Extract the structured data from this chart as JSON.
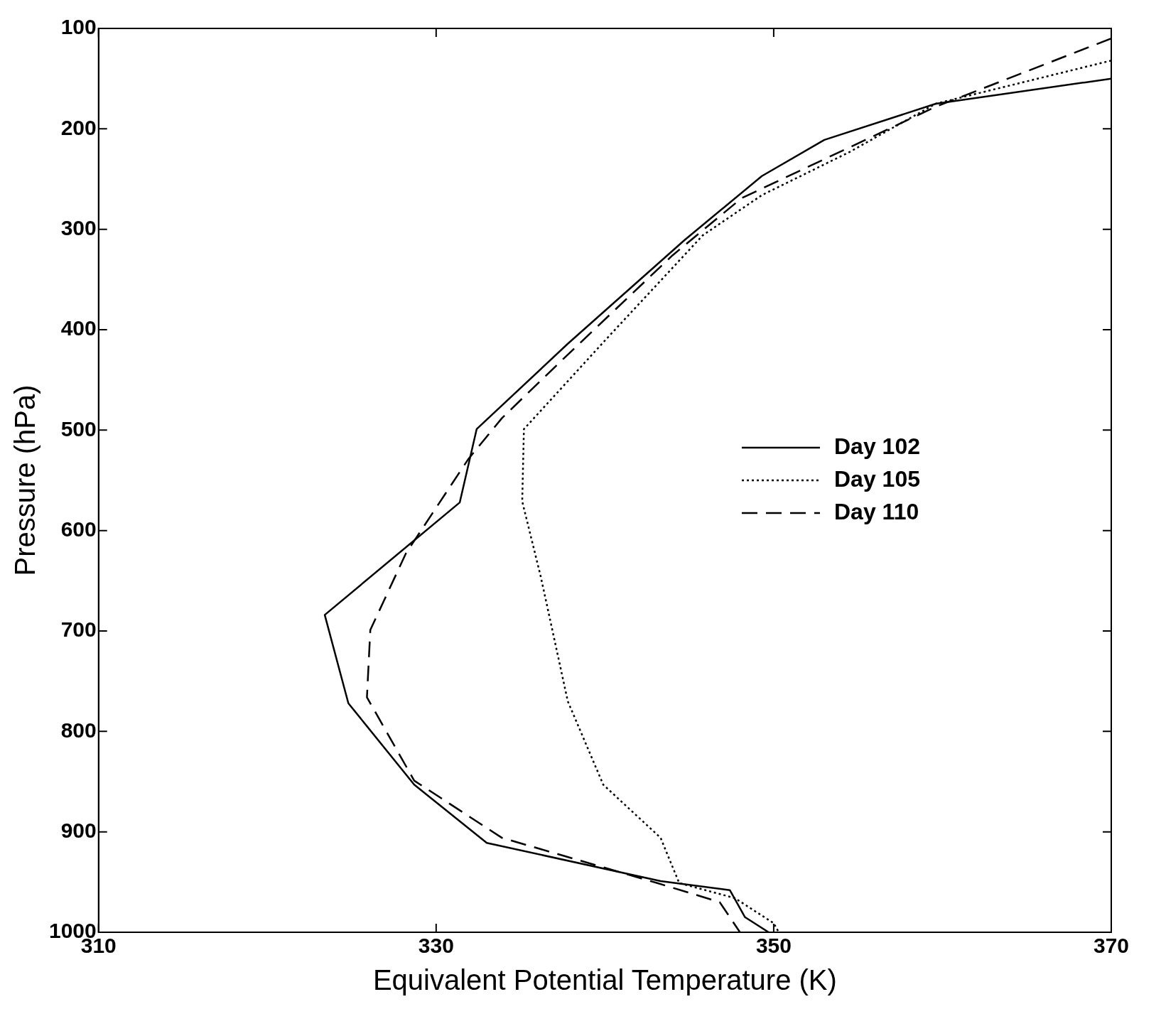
{
  "chart_data": {
    "type": "line",
    "xlabel": "Equivalent Potential Temperature (K)",
    "ylabel": "Pressure (hPa)",
    "xlim": [
      310,
      370
    ],
    "xticks": [
      310,
      330,
      350,
      370
    ],
    "ylim": [
      1000,
      100
    ],
    "yticks": [
      100,
      200,
      300,
      400,
      500,
      600,
      700,
      800,
      900,
      1000
    ],
    "grid": false,
    "legend": "right",
    "marker": "none",
    "series": [
      {
        "name": "Day 102",
        "color": "#000000",
        "line_style": "solid",
        "x": [
          370,
          359.6,
          353.0,
          349.3,
          344.7,
          337.8,
          332.4,
          331.4,
          323.4,
          324.8,
          328.7,
          333.0,
          343.3,
          347.4,
          348.3,
          349.7
        ],
        "values": [
          150,
          175,
          211,
          247,
          311,
          414,
          499,
          572,
          684,
          772,
          853,
          911,
          949,
          958,
          985,
          1000
        ]
      },
      {
        "name": "Day 105",
        "color": "#000000",
        "line_style": "dotted",
        "x": [
          370,
          359.6,
          354.5,
          349.3,
          345.8,
          340.1,
          335.2,
          335.1,
          336.2,
          337.8,
          339.9,
          343.3,
          344.4,
          347.7,
          350.0,
          350.3
        ],
        "values": [
          132,
          175,
          223,
          266,
          306,
          409,
          499,
          571,
          646,
          770,
          853,
          906,
          951,
          966,
          991,
          1000
        ]
      },
      {
        "name": "Day 110",
        "color": "#000000",
        "line_style": "dashed",
        "x": [
          370,
          359.6,
          348.1,
          344.0,
          337.6,
          333.9,
          331.9,
          328.2,
          326.1,
          325.9,
          328.7,
          333.9,
          343.1,
          346.8,
          348.0
        ],
        "values": [
          110,
          178,
          269,
          326,
          428,
          488,
          529,
          623,
          699,
          766,
          849,
          906,
          951,
          970,
          1000
        ]
      }
    ]
  }
}
